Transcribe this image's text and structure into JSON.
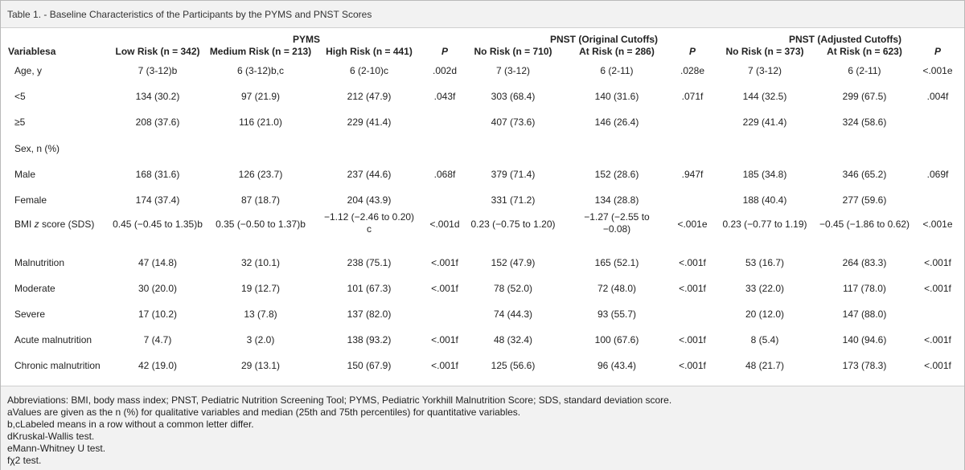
{
  "title": "Table 1. - Baseline Characteristics of the Participants by the PYMS and PNST Scores",
  "groups": {
    "pyms": "PYMS",
    "pnst_original": "PNST (Original Cutoffs)",
    "pnst_adjusted": "PNST (Adjusted Cutoffs)"
  },
  "headers": {
    "variables": "Variablesa",
    "low_risk": "Low Risk (n = 342)",
    "medium_risk": "Medium Risk (n = 213)",
    "high_risk": "High Risk (n = 441)",
    "p1": "P",
    "no_risk_orig": "No Risk (n = 710)",
    "at_risk_orig": "At Risk (n = 286)",
    "p2": "P",
    "no_risk_adj": "No Risk (n = 373)",
    "at_risk_adj": "At Risk (n = 623)",
    "p3": "P"
  },
  "rows": [
    {
      "label": "Age, y",
      "cells": [
        "7 (3-12)b",
        "6 (3-12)b,c",
        "6 (2-10)c",
        ".002d",
        "7 (3-12)",
        "6 (2-11)",
        ".028e",
        "7 (3-12)",
        "6 (2-11)",
        "<.001e"
      ]
    },
    {
      "label": "<5",
      "cells": [
        "134 (30.2)",
        "97 (21.9)",
        "212 (47.9)",
        ".043f",
        "303 (68.4)",
        "140 (31.6)",
        ".071f",
        "144 (32.5)",
        "299 (67.5)",
        ".004f"
      ]
    },
    {
      "label": "≥5",
      "cells": [
        "208 (37.6)",
        "116 (21.0)",
        "229 (41.4)",
        "",
        "407 (73.6)",
        "146 (26.4)",
        "",
        "229 (41.4)",
        "324 (58.6)",
        ""
      ]
    },
    {
      "label": "Sex, n (%)",
      "cells": [
        "",
        "",
        "",
        "",
        "",
        "",
        "",
        "",
        "",
        ""
      ]
    },
    {
      "label": "Male",
      "cells": [
        "168 (31.6)",
        "126 (23.7)",
        "237 (44.6)",
        ".068f",
        "379 (71.4)",
        "152 (28.6)",
        ".947f",
        "185 (34.8)",
        "346 (65.2)",
        ".069f"
      ]
    },
    {
      "label": "Female",
      "cells": [
        "174 (37.4)",
        "87 (18.7)",
        "204 (43.9)",
        "",
        "331 (71.2)",
        "134 (28.8)",
        "",
        "188 (40.4)",
        "277 (59.6)",
        ""
      ]
    },
    {
      "label_prefix": "BMI ",
      "label_italic": "z",
      "label_suffix": " score (SDS)",
      "cells": [
        "0.45 (−0.45 to 1.35)b",
        "0.35 (−0.50 to 1.37)b",
        "−1.12 (−2.46 to 0.20) c",
        "<.001d",
        "0.23 (−0.75 to 1.20)",
        "−1.27 (−2.55 to −0.08)",
        "<.001e",
        "0.23 (−0.77 to 1.19)",
        "−0.45 (−1.86 to 0.62)",
        "<.001e"
      ]
    },
    {
      "label": "Malnutrition",
      "cells": [
        "47 (14.8)",
        "32 (10.1)",
        "238 (75.1)",
        "<.001f",
        "152 (47.9)",
        "165 (52.1)",
        "<.001f",
        "53 (16.7)",
        "264 (83.3)",
        "<.001f"
      ]
    },
    {
      "label": "Moderate",
      "cells": [
        "30 (20.0)",
        "19 (12.7)",
        "101 (67.3)",
        "<.001f",
        "78 (52.0)",
        "72 (48.0)",
        "<.001f",
        "33 (22.0)",
        "117 (78.0)",
        "<.001f"
      ]
    },
    {
      "label": "Severe",
      "cells": [
        "17 (10.2)",
        "13 (7.8)",
        "137 (82.0)",
        "",
        "74 (44.3)",
        "93 (55.7)",
        "",
        "20 (12.0)",
        "147 (88.0)",
        ""
      ]
    },
    {
      "label": "Acute malnutrition",
      "cells": [
        "7 (4.7)",
        "3 (2.0)",
        "138 (93.2)",
        "<.001f",
        "48 (32.4)",
        "100 (67.6)",
        "<.001f",
        "8 (5.4)",
        "140 (94.6)",
        "<.001f"
      ]
    },
    {
      "label": "Chronic malnutrition",
      "cells": [
        "42 (19.0)",
        "29 (13.1)",
        "150 (67.9)",
        "<.001f",
        "125 (56.6)",
        "96 (43.4)",
        "<.001f",
        "48 (21.7)",
        "173 (78.3)",
        "<.001f"
      ]
    }
  ],
  "footnotes": [
    "Abbreviations: BMI, body mass index; PNST, Pediatric Nutrition Screening Tool; PYMS, Pediatric Yorkhill Malnutrition Score; SDS, standard deviation score.",
    "aValues are given as the n (%) for qualitative variables and median (25th and 75th percentiles) for quantitative variables.",
    "b,cLabeled means in a row without a common letter differ.",
    "dKruskal-Wallis test.",
    "eMann-Whitney U test.",
    "fχ2 test."
  ]
}
